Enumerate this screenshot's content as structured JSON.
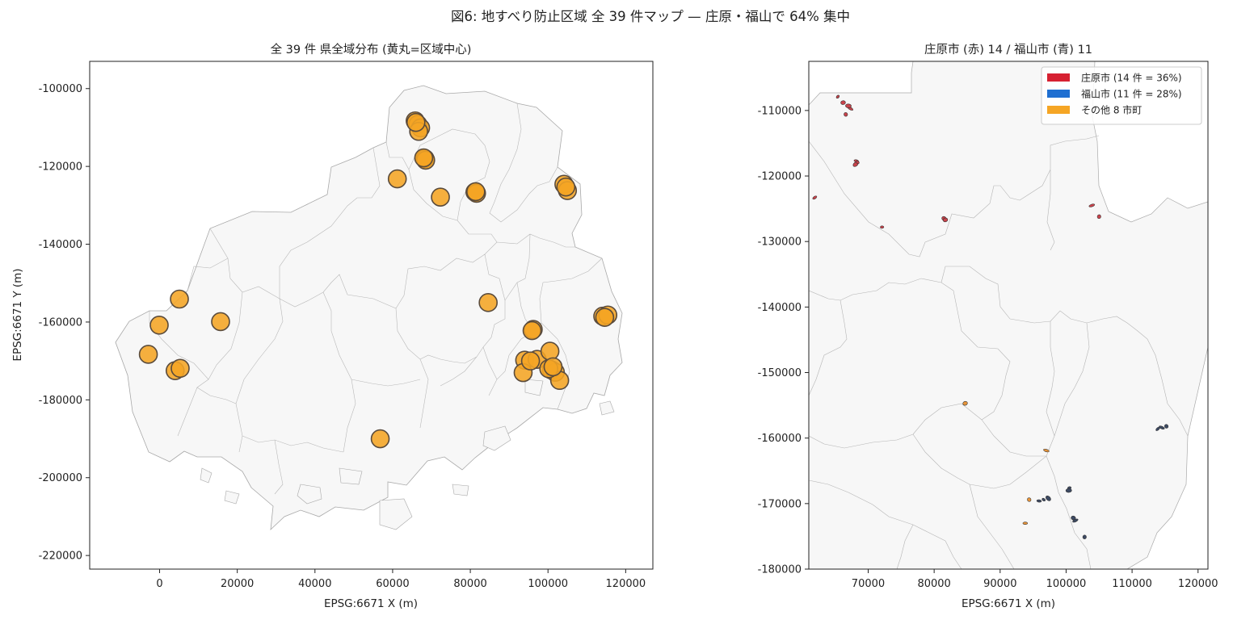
{
  "figure": {
    "suptitle": "図6: 地すべり防止区域 全 39 件マップ — 庄原・福山で 64% 集中"
  },
  "chart_data": [
    {
      "type": "scatter",
      "title": "全 39 件 県全域分布 (黄丸=区域中心)",
      "xlabel": "EPSG:6671 X (m)",
      "ylabel": "EPSG:6671 Y (m)",
      "xlim": [
        -18000,
        127000
      ],
      "ylim": [
        -223500,
        -93000
      ],
      "xticks": [
        0,
        20000,
        40000,
        60000,
        80000,
        100000,
        120000
      ],
      "yticks": [
        -100000,
        -120000,
        -140000,
        -160000,
        -180000,
        -200000,
        -220000
      ],
      "grid": false,
      "marker_color": "#f5a524",
      "marker_edge": "#5a4b3c",
      "background_region_color": "#f7f7f7",
      "region_border_color": "#aaaaaa",
      "series": [
        {
          "x": [
            65800,
            66500,
            67200,
            66700,
            68300,
            68500,
            61200,
            72300,
            81200,
            81600,
            104100,
            105000,
            5100,
            -100,
            15700,
            -2900,
            4000,
            5300,
            84600,
            96200,
            95900,
            94000,
            93600,
            97200,
            100500,
            100900,
            101900,
            103000,
            114100,
            115400,
            56800,
            66000,
            68000,
            100200,
            95500,
            101300,
            114600,
            81400,
            104600
          ],
          "y": [
            -108300,
            -109200,
            -110100,
            -111000,
            -118000,
            -118400,
            -123200,
            -127900,
            -126600,
            -126900,
            -124600,
            -126200,
            -154100,
            -160800,
            -159900,
            -168300,
            -172500,
            -171900,
            -155000,
            -161900,
            -162200,
            -169800,
            -173000,
            -169600,
            -167500,
            -172300,
            -172900,
            -175000,
            -158500,
            -158200,
            -190000,
            -108700,
            -117800,
            -172000,
            -170000,
            -171500,
            -158800,
            -126500,
            -125300
          ]
        }
      ]
    },
    {
      "type": "map",
      "title": "庄原市 (赤) 14 / 福山市 (青) 11",
      "xlabel": "EPSG:6671 X (m)",
      "ylabel": "",
      "xlim": [
        61000,
        121500
      ],
      "ylim": [
        -180000,
        -102500
      ],
      "xticks": [
        70000,
        80000,
        90000,
        100000,
        110000,
        120000
      ],
      "yticks": [
        -110000,
        -120000,
        -130000,
        -140000,
        -150000,
        -160000,
        -170000,
        -180000
      ],
      "legend_position": "upper-right",
      "legend": [
        {
          "label": "庄原市 (14 件 = 36%)",
          "color": "#d62031"
        },
        {
          "label": "福山市 (11 件 = 28%)",
          "color": "#1f6fd1"
        },
        {
          "label": "その他 8 市町",
          "color": "#f5a524"
        }
      ],
      "areas": [
        {
          "x": 65400,
          "y": -107900,
          "group": "shobara"
        },
        {
          "x": 66200,
          "y": -108800,
          "group": "shobara"
        },
        {
          "x": 67300,
          "y": -109700,
          "group": "shobara"
        },
        {
          "x": 66600,
          "y": -110600,
          "group": "shobara"
        },
        {
          "x": 68200,
          "y": -117700,
          "group": "shobara"
        },
        {
          "x": 68100,
          "y": -118200,
          "group": "shobara"
        },
        {
          "x": 72100,
          "y": -127800,
          "group": "shobara"
        },
        {
          "x": 81500,
          "y": -126500,
          "group": "shobara"
        },
        {
          "x": 103900,
          "y": -124500,
          "group": "shobara"
        },
        {
          "x": 105000,
          "y": -126200,
          "group": "shobara"
        },
        {
          "x": 61900,
          "y": -123300,
          "group": "shobara"
        },
        {
          "x": 67000,
          "y": -109300,
          "group": "shobara"
        },
        {
          "x": 68400,
          "y": -117900,
          "group": "shobara"
        },
        {
          "x": 81700,
          "y": -126700,
          "group": "shobara"
        },
        {
          "x": 114500,
          "y": -158400,
          "group": "fukuyama"
        },
        {
          "x": 115200,
          "y": -158200,
          "group": "fukuyama"
        },
        {
          "x": 95900,
          "y": -169600,
          "group": "fukuyama"
        },
        {
          "x": 97300,
          "y": -169200,
          "group": "fukuyama"
        },
        {
          "x": 100500,
          "y": -167600,
          "group": "fukuyama"
        },
        {
          "x": 101100,
          "y": -172200,
          "group": "fukuyama"
        },
        {
          "x": 101400,
          "y": -172600,
          "group": "fukuyama"
        },
        {
          "x": 102800,
          "y": -175100,
          "group": "fukuyama"
        },
        {
          "x": 113900,
          "y": -158600,
          "group": "fukuyama"
        },
        {
          "x": 100400,
          "y": -168000,
          "group": "fukuyama"
        },
        {
          "x": 96600,
          "y": -169400,
          "group": "fukuyama"
        },
        {
          "x": 84700,
          "y": -154700,
          "group": "other"
        },
        {
          "x": 97000,
          "y": -161900,
          "group": "other"
        },
        {
          "x": 94400,
          "y": -169400,
          "group": "other"
        },
        {
          "x": 93800,
          "y": -173000,
          "group": "other"
        }
      ]
    }
  ]
}
